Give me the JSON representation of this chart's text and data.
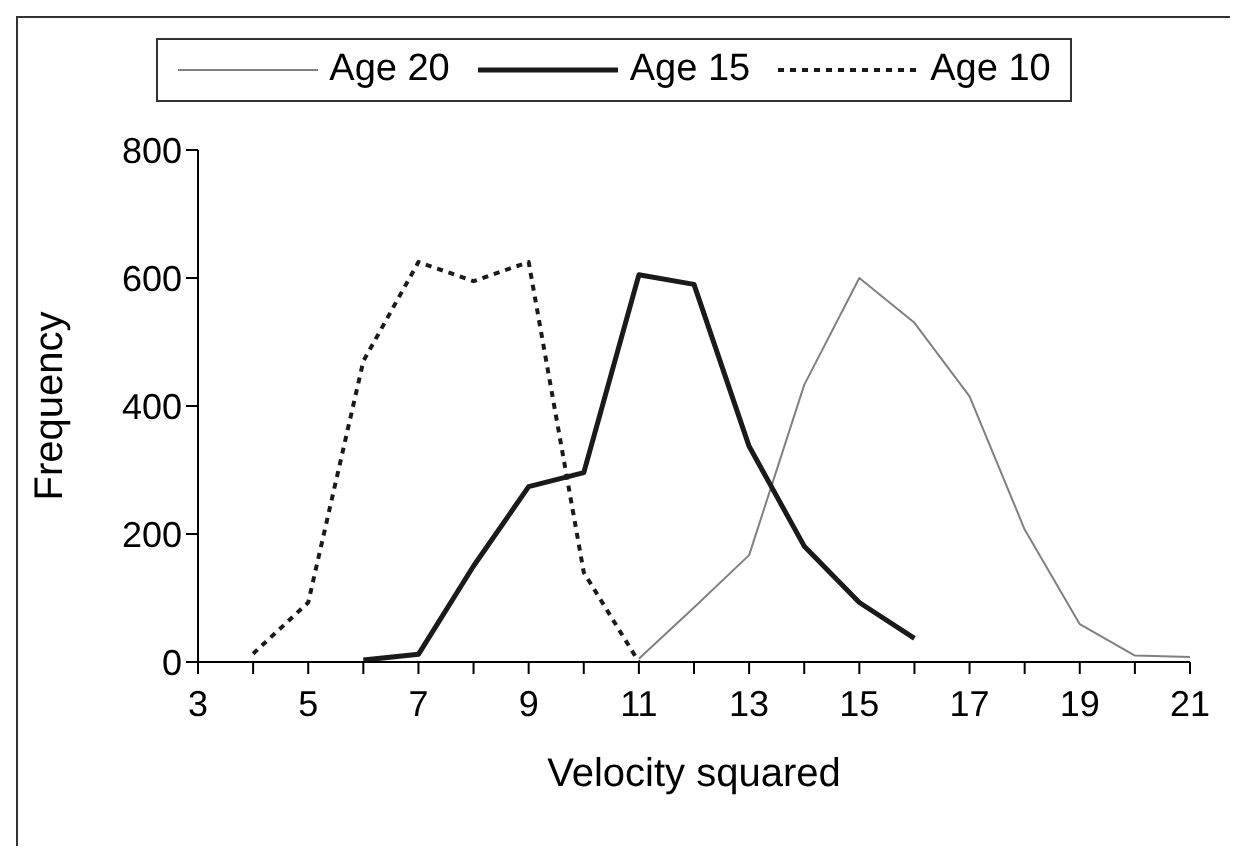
{
  "chart_data": {
    "type": "line",
    "xlabel": "Velocity squared",
    "ylabel": "Frequency",
    "categories": [
      "3",
      null,
      "5",
      null,
      "7",
      null,
      "9",
      null,
      "11",
      null,
      "13",
      null,
      "15",
      null,
      "17",
      null,
      "19",
      null,
      "21"
    ],
    "series": [
      {
        "name": "Age 20",
        "color": "#808080",
        "line_style": "solid",
        "values": [
          null,
          null,
          null,
          null,
          null,
          null,
          null,
          null,
          5,
          85,
          167,
          433,
          600,
          530,
          415,
          207,
          59,
          10,
          8
        ]
      },
      {
        "name": "Age 15",
        "color": "#1a1a1a",
        "line_style": "solid",
        "values": [
          null,
          null,
          null,
          3,
          12,
          150,
          274,
          296,
          605,
          590,
          337,
          181,
          93,
          37,
          null,
          null,
          null,
          null,
          null
        ]
      },
      {
        "name": "Age 10",
        "color": "#1a1a1a",
        "line_style": "dotted",
        "values": [
          null,
          13,
          93,
          470,
          625,
          595,
          625,
          140,
          0,
          null,
          null,
          null,
          null,
          null,
          null,
          null,
          null,
          null,
          null
        ]
      }
    ],
    "ylim": [
      0,
      800
    ],
    "yticks": [
      0,
      200,
      400,
      600,
      800
    ],
    "grid": false,
    "legend": "top",
    "marker": "none"
  }
}
